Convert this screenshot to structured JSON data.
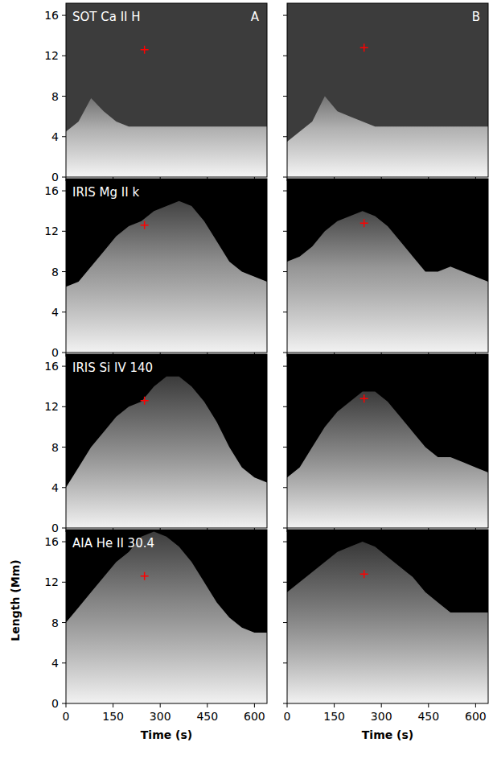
{
  "chart_data": [
    {
      "type": "area",
      "title": "SOT Ca II H",
      "annotations": [
        {
          "text": "A"
        }
      ],
      "tick_labels": "y",
      "x": [
        0,
        40,
        80,
        120,
        160,
        200,
        240,
        280,
        320,
        360,
        400,
        440,
        480,
        520,
        560,
        600,
        640
      ],
      "series": [
        {
          "type": "area",
          "color": "#d8d8d8",
          "values": [
            4.5,
            5.5,
            7.8,
            6.5,
            5.5,
            5,
            5,
            5,
            5,
            5,
            5,
            5,
            5,
            5,
            5,
            5,
            5
          ]
        },
        {
          "type": "scatter",
          "color": "#ff0000",
          "marker": "plus",
          "x": [
            250
          ],
          "values": [
            12.6
          ]
        }
      ],
      "xlim": [
        0,
        640
      ],
      "ylim": [
        0,
        17.2
      ],
      "xticks": [
        0,
        150,
        300,
        450,
        600
      ],
      "yticks": [
        0,
        4,
        8,
        12,
        16
      ]
    },
    {
      "type": "area",
      "annotations": [
        {
          "text": "B"
        }
      ],
      "tick_labels": false,
      "x": [
        0,
        40,
        80,
        120,
        160,
        200,
        240,
        280,
        320,
        360,
        400,
        440,
        480,
        520,
        560,
        600,
        640
      ],
      "series": [
        {
          "type": "area",
          "color": "#d8d8d8",
          "values": [
            3.5,
            4.5,
            5.5,
            8,
            6.5,
            6,
            5.5,
            5,
            5,
            5,
            5,
            5,
            5,
            5,
            5,
            5,
            5
          ]
        },
        {
          "type": "scatter",
          "color": "#ff0000",
          "marker": "plus",
          "x": [
            245
          ],
          "values": [
            12.8
          ]
        }
      ],
      "xlim": [
        0,
        640
      ],
      "ylim": [
        0,
        17.2
      ],
      "xticks": [
        0,
        150,
        300,
        450,
        600
      ],
      "yticks": [
        0,
        4,
        8,
        12,
        16
      ]
    },
    {
      "type": "area",
      "title": "IRIS Mg II k",
      "tick_labels": "y",
      "x": [
        0,
        40,
        80,
        120,
        160,
        200,
        240,
        280,
        320,
        360,
        400,
        440,
        480,
        520,
        560,
        600,
        640
      ],
      "series": [
        {
          "type": "area",
          "color": "#bdbdbd",
          "values": [
            6.5,
            7,
            8.5,
            10,
            11.5,
            12.5,
            13,
            14,
            14.5,
            15,
            14.5,
            13,
            11,
            9,
            8,
            7.5,
            7
          ]
        },
        {
          "type": "scatter",
          "color": "#ff0000",
          "marker": "plus",
          "x": [
            250
          ],
          "values": [
            12.6
          ]
        }
      ],
      "xlim": [
        0,
        640
      ],
      "ylim": [
        0,
        17.2
      ],
      "xticks": [
        0,
        150,
        300,
        450,
        600
      ],
      "yticks": [
        0,
        4,
        8,
        12,
        16
      ]
    },
    {
      "type": "area",
      "tick_labels": false,
      "x": [
        0,
        40,
        80,
        120,
        160,
        200,
        240,
        280,
        320,
        360,
        400,
        440,
        480,
        520,
        560,
        600,
        640
      ],
      "series": [
        {
          "type": "area",
          "color": "#c8c8c8",
          "values": [
            9,
            9.5,
            10.5,
            12,
            13,
            13.5,
            14,
            13.5,
            12.5,
            11,
            9.5,
            8,
            8,
            8.5,
            8,
            7.5,
            7
          ]
        },
        {
          "type": "scatter",
          "color": "#ff0000",
          "marker": "plus",
          "x": [
            245
          ],
          "values": [
            12.8
          ]
        }
      ],
      "xlim": [
        0,
        640
      ],
      "ylim": [
        0,
        17.2
      ],
      "xticks": [
        0,
        150,
        300,
        450,
        600
      ],
      "yticks": [
        0,
        4,
        8,
        12,
        16
      ]
    },
    {
      "type": "area",
      "title": "IRIS Si IV 140",
      "tick_labels": "y",
      "x": [
        0,
        40,
        80,
        120,
        160,
        200,
        240,
        280,
        320,
        360,
        400,
        440,
        480,
        520,
        560,
        600,
        640
      ],
      "series": [
        {
          "type": "area",
          "color": "#a8a8a8",
          "values": [
            4,
            6,
            8,
            9.5,
            11,
            12,
            12.5,
            14,
            15,
            15,
            14,
            12.5,
            10.5,
            8,
            6,
            5,
            4.5
          ]
        },
        {
          "type": "scatter",
          "color": "#ff0000",
          "marker": "plus",
          "x": [
            250
          ],
          "values": [
            12.6
          ]
        }
      ],
      "xlim": [
        0,
        640
      ],
      "ylim": [
        0,
        17.2
      ],
      "xticks": [
        0,
        150,
        300,
        450,
        600
      ],
      "yticks": [
        0,
        4,
        8,
        12,
        16
      ]
    },
    {
      "type": "area",
      "tick_labels": false,
      "x": [
        0,
        40,
        80,
        120,
        160,
        200,
        240,
        280,
        320,
        360,
        400,
        440,
        480,
        520,
        560,
        600,
        640
      ],
      "series": [
        {
          "type": "area",
          "color": "#a8a8a8",
          "values": [
            5,
            6,
            8,
            10,
            11.5,
            12.5,
            13.5,
            13.5,
            12.5,
            11,
            9.5,
            8,
            7,
            7,
            6.5,
            6,
            5.5
          ]
        },
        {
          "type": "scatter",
          "color": "#ff0000",
          "marker": "plus",
          "x": [
            245
          ],
          "values": [
            12.8
          ]
        }
      ],
      "xlim": [
        0,
        640
      ],
      "ylim": [
        0,
        17.2
      ],
      "xticks": [
        0,
        150,
        300,
        450,
        600
      ],
      "yticks": [
        0,
        4,
        8,
        12,
        16
      ]
    },
    {
      "type": "area",
      "title": "AIA He II 30.4",
      "xlabel": "Time (s)",
      "ylabel": "Length (Mm)",
      "x": [
        0,
        40,
        80,
        120,
        160,
        200,
        240,
        280,
        320,
        360,
        400,
        440,
        480,
        520,
        560,
        600,
        640
      ],
      "series": [
        {
          "type": "area",
          "color": "#b0b0b0",
          "values": [
            8,
            9.5,
            11,
            12.5,
            14,
            15,
            16.5,
            17,
            16.5,
            15.5,
            14,
            12,
            10,
            8.5,
            7.5,
            7,
            7
          ]
        },
        {
          "type": "scatter",
          "color": "#ff0000",
          "marker": "plus",
          "x": [
            250
          ],
          "values": [
            12.6
          ]
        }
      ],
      "xlim": [
        0,
        640
      ],
      "ylim": [
        0,
        17.2
      ],
      "xticks": [
        0,
        150,
        300,
        450,
        600
      ],
      "yticks": [
        0,
        4,
        8,
        12,
        16
      ]
    },
    {
      "type": "area",
      "xlabel": "Time (s)",
      "tick_labels": "x",
      "x": [
        0,
        40,
        80,
        120,
        160,
        200,
        240,
        280,
        320,
        360,
        400,
        440,
        480,
        520,
        560,
        600,
        640
      ],
      "series": [
        {
          "type": "area",
          "color": "#a0a0a0",
          "values": [
            11,
            12,
            13,
            14,
            15,
            15.5,
            16,
            15.5,
            14.5,
            13.5,
            12.5,
            11,
            10,
            9,
            9,
            9,
            9
          ]
        },
        {
          "type": "scatter",
          "color": "#ff0000",
          "marker": "plus",
          "x": [
            245
          ],
          "values": [
            12.8
          ]
        }
      ],
      "xlim": [
        0,
        640
      ],
      "ylim": [
        0,
        17.2
      ],
      "xticks": [
        0,
        150,
        300,
        450,
        600
      ],
      "yticks": [
        0,
        4,
        8,
        12,
        16
      ]
    }
  ]
}
